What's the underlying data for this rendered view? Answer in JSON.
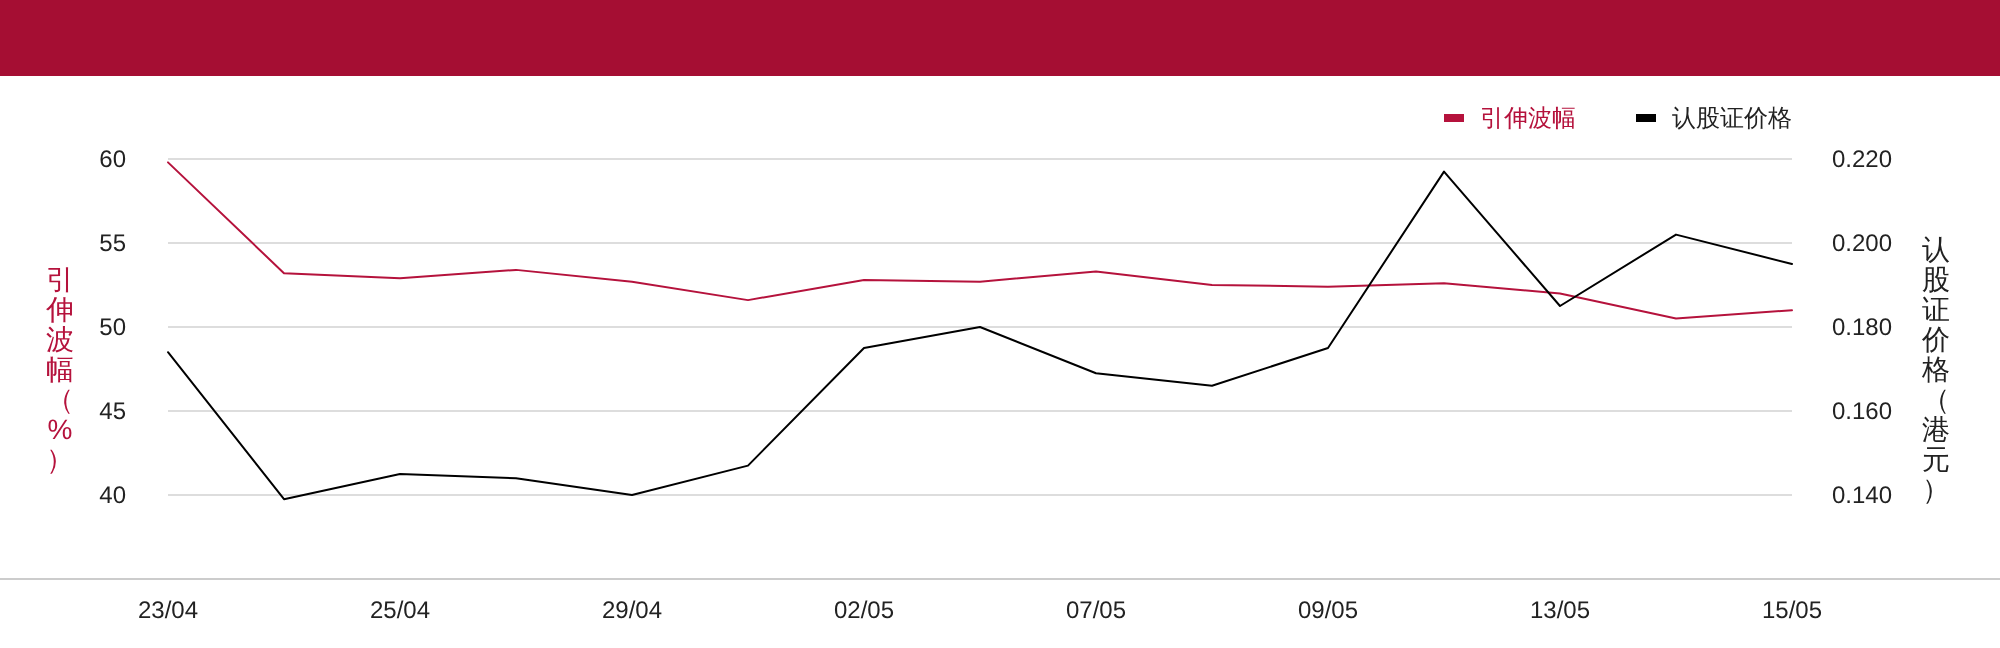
{
  "chart_data": {
    "type": "line",
    "categories": [
      "23/04",
      null,
      "25/04",
      null,
      "29/04",
      null,
      "02/05",
      null,
      "07/05",
      null,
      "09/05",
      null,
      "13/05",
      null,
      "15/05"
    ],
    "series": [
      {
        "name": "引伸波幅",
        "color": "#b5123c",
        "values": [
          59.8,
          53.2,
          52.9,
          53.4,
          52.7,
          51.6,
          52.8,
          52.7,
          53.3,
          52.5,
          52.4,
          52.6,
          52.0,
          50.5,
          51.0
        ]
      },
      {
        "name": "认股证价格",
        "color": "#000000",
        "axis": "y2",
        "values": [
          0.174,
          0.139,
          0.145,
          0.144,
          0.14,
          0.147,
          0.175,
          0.18,
          0.169,
          0.166,
          0.175,
          0.217,
          0.185,
          0.202,
          0.195
        ]
      }
    ],
    "ylabel": "引伸波幅（%）",
    "y2label": "认股证价格（港元）",
    "ylim": [
      35,
      60
    ],
    "yticks": [
      40,
      45,
      50,
      55,
      60
    ],
    "y2lim": [
      0.12,
      0.22
    ],
    "y2ticks": [
      {
        "value": 0.14,
        "label": "0.140"
      },
      {
        "value": 0.16,
        "label": "0.160"
      },
      {
        "value": 0.18,
        "label": "0.180"
      },
      {
        "value": 0.2,
        "label": "0.200"
      },
      {
        "value": 0.22,
        "label": "0.220"
      }
    ],
    "grid": "y",
    "legend": "top right"
  }
}
